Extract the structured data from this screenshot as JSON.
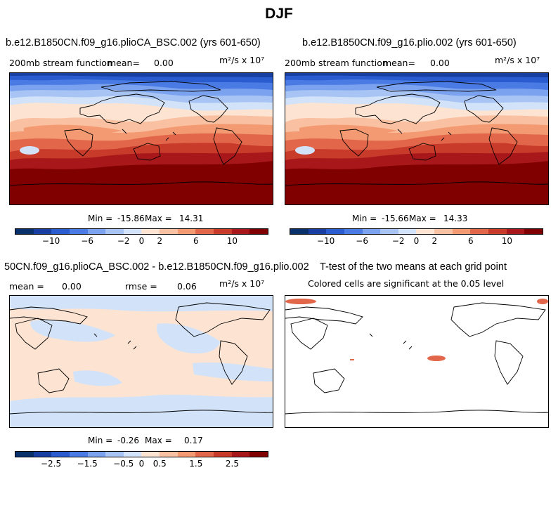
{
  "figure_title": "DJF",
  "colors": {
    "neg": [
      "#08306b",
      "#173fa1",
      "#2a5bcf",
      "#4a7ae3",
      "#7ba2ee",
      "#a7c4f4",
      "#d2e3f9"
    ],
    "pos": [
      "#fde3d1",
      "#f9c1a1",
      "#f39a72",
      "#e2674a",
      "#c83a2a",
      "#a8181a",
      "#800000"
    ]
  },
  "chart_data": [
    {
      "type": "heatmap",
      "title": "b.e12.B1850CN.f09_g16.plioCA_BSC.002 (yrs 601-650)",
      "variable": "200mb stream function",
      "mean_label": "mean=",
      "mean_value": "0.00",
      "units": "m²/s x 10⁷",
      "min_label": "Min =",
      "min_value": "-15.86",
      "max_label": "Max =",
      "max_value": "14.31",
      "colorbar_ticks": [
        "−10",
        "−6",
        "−2",
        "0",
        "2",
        "6",
        "10"
      ]
    },
    {
      "type": "heatmap",
      "title": "b.e12.B1850CN.f09_g16.plio.002 (yrs 601-650)",
      "variable": "200mb stream function",
      "mean_label": "mean=",
      "mean_value": "0.00",
      "units": "m²/s x 10⁷",
      "min_label": "Min =",
      "min_value": "-15.66",
      "max_label": "Max =",
      "max_value": "14.33",
      "colorbar_ticks": [
        "−10",
        "−6",
        "−2",
        "0",
        "2",
        "6",
        "10"
      ]
    },
    {
      "type": "heatmap",
      "title": "50CN.f09_g16.plioCA_BSC.002 - b.e12.B1850CN.f09_g16.plio.002",
      "mean_label": "mean =",
      "mean_value": "0.00",
      "rmse_label": "rmse =",
      "rmse_value": "0.06",
      "units": "m²/s x 10⁷",
      "min_label": "Min =",
      "min_value": "-0.26",
      "max_label": "Max =",
      "max_value": "0.17",
      "colorbar_ticks": [
        "−2.5",
        "−1.5",
        "−0.5",
        "0",
        "0.5",
        "1.5",
        "2.5"
      ]
    },
    {
      "type": "heatmap",
      "title": "T-test of the two means at each grid point",
      "subtitle": "Colored cells are significant at the 0.05 level"
    }
  ]
}
